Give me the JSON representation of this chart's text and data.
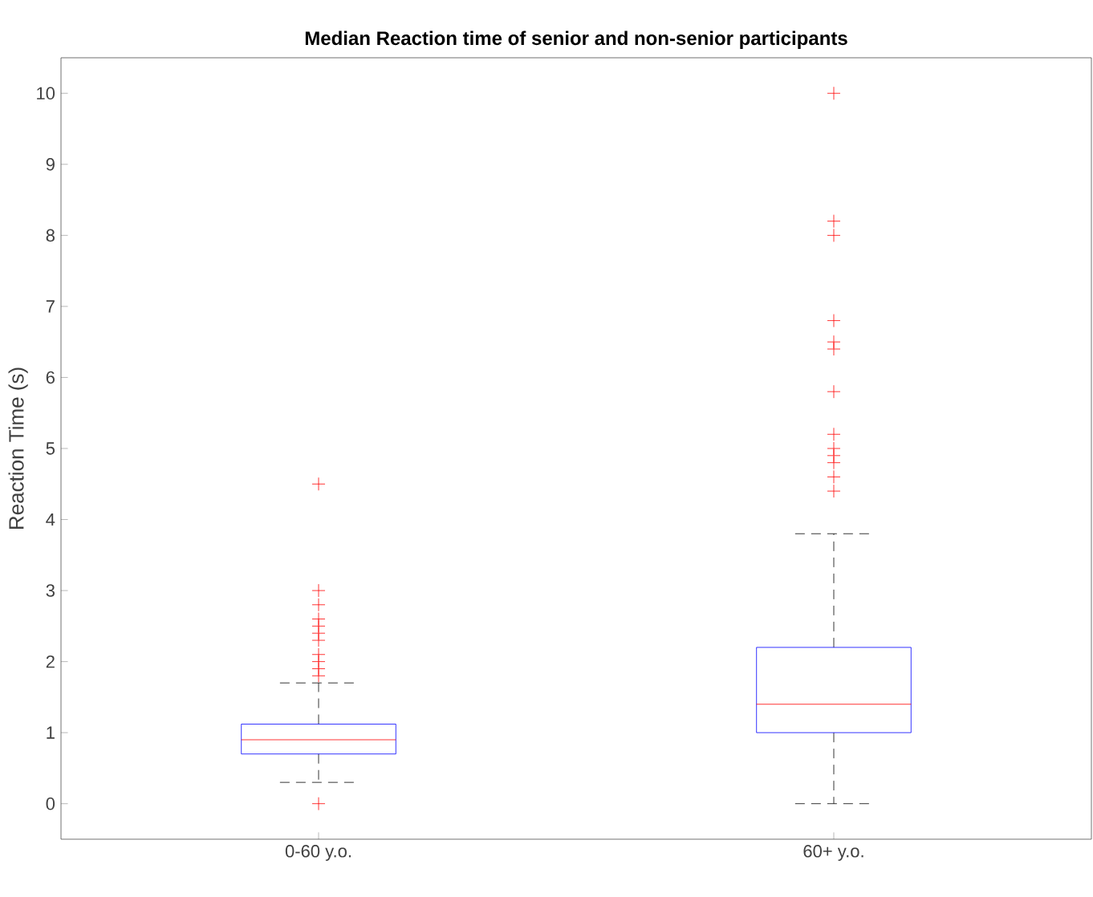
{
  "chart_data": {
    "type": "box",
    "title": "Median Reaction time of senior and non-senior participants",
    "ylabel": "Reaction Time (s)",
    "categories": [
      "0-60 y.o.",
      "60+ y.o."
    ],
    "boxes": [
      {
        "low": 0.3,
        "q1": 0.7,
        "median": 0.9,
        "q3": 1.12,
        "high": 1.7,
        "outliers": [
          0,
          1.8,
          1.9,
          2.0,
          2.1,
          2.3,
          2.4,
          2.5,
          2.6,
          2.8,
          3.0,
          4.5
        ]
      },
      {
        "low": 0,
        "q1": 1.0,
        "median": 1.4,
        "q3": 2.2,
        "high": 3.8,
        "outliers": [
          4.4,
          4.6,
          4.8,
          4.9,
          5.0,
          5.2,
          5.8,
          6.4,
          6.5,
          6.8,
          8.0,
          8.2,
          10.0
        ]
      }
    ],
    "color": "#0000ff",
    "ylim": [
      -0.5,
      10.5
    ],
    "yticks": [
      0,
      1,
      2,
      3,
      4,
      5,
      6,
      7,
      8,
      9,
      10
    ]
  }
}
